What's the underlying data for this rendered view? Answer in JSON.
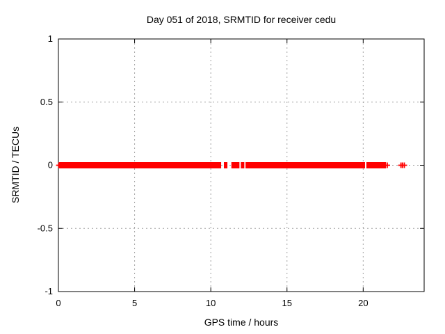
{
  "chart_data": {
    "type": "scatter",
    "title": "Day 051 of 2018, SRMTID for receiver cedu",
    "xlabel": "GPS time / hours",
    "ylabel": "SRMTID / TECUs",
    "xlim": [
      0,
      24
    ],
    "ylim": [
      -1,
      1
    ],
    "xticks": [
      0,
      5,
      10,
      15,
      20
    ],
    "xtick_labels": [
      "0",
      "5",
      "10",
      "15",
      "20"
    ],
    "yticks": [
      -1,
      -0.5,
      0,
      0.5,
      1
    ],
    "ytick_labels": [
      "-1",
      "-0.5",
      "0",
      "0.5",
      "1"
    ],
    "grid": true,
    "legend": "none",
    "marker": "plus",
    "series": [
      {
        "name": "SRMTID",
        "color": "#ff0000",
        "y_value": 0,
        "segments_hours": [
          [
            0.05,
            10.68
          ],
          [
            10.86,
            11.09
          ],
          [
            11.35,
            11.88
          ],
          [
            11.97,
            12.2
          ],
          [
            12.28,
            20.12
          ],
          [
            20.21,
            21.5
          ]
        ],
        "isolated_points": [
          [
            0.03,
            0
          ],
          [
            21.58,
            0
          ],
          [
            22.48,
            0
          ],
          [
            22.58,
            0
          ],
          [
            22.7,
            0
          ]
        ]
      }
    ]
  },
  "colors": {
    "data": "#ff0000",
    "grid": "#a0a0a0",
    "axis": "#000000",
    "background": "#ffffff"
  }
}
